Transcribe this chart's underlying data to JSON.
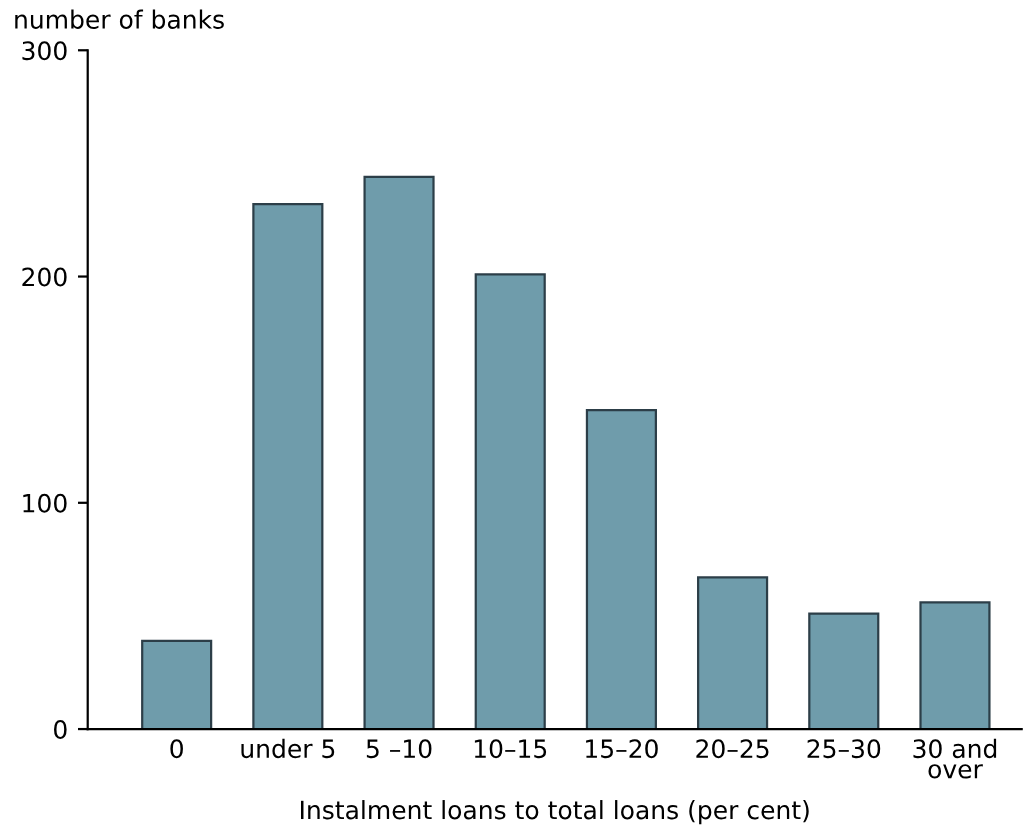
{
  "chart_data": {
    "type": "bar",
    "ylabel": "number of banks",
    "xlabel": "Instalment loans to total loans (per cent)",
    "categories": [
      "0",
      "under 5",
      "5 –10",
      "10–15",
      "15–20",
      "20–25",
      "25–30",
      "30 and\nover"
    ],
    "values": [
      39,
      232,
      244,
      201,
      141,
      67,
      51,
      56
    ],
    "color": "#6f9cab",
    "ylim": [
      0,
      300
    ],
    "yticks": [
      0,
      100,
      200,
      300
    ],
    "grid": false,
    "legend": false
  }
}
